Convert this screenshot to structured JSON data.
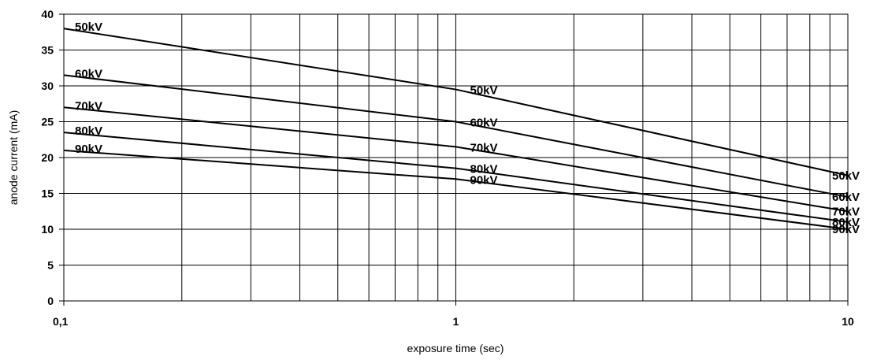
{
  "chart_data": {
    "type": "line",
    "title": "",
    "xlabel": "exposure time   (sec)",
    "ylabel": "anode current   (mA)",
    "x_scale": "log",
    "xlim": [
      0.1,
      10
    ],
    "ylim": [
      0,
      40
    ],
    "x_ticks": [
      0.1,
      1,
      10
    ],
    "x_tick_labels": [
      "0,1",
      "1",
      "10"
    ],
    "y_ticks": [
      0,
      5,
      10,
      15,
      20,
      25,
      30,
      35,
      40
    ],
    "y_tick_labels": [
      "0",
      "5",
      "10",
      "15",
      "20",
      "25",
      "30",
      "35",
      "40"
    ],
    "grid": true,
    "legend": "none",
    "series": [
      {
        "name": "50kV",
        "x": [
          0.1,
          1,
          10
        ],
        "y": [
          38,
          29.5,
          17.5
        ]
      },
      {
        "name": "60kV",
        "x": [
          0.1,
          1,
          10
        ],
        "y": [
          31.5,
          25,
          14.5
        ]
      },
      {
        "name": "70kV",
        "x": [
          0.1,
          1,
          10
        ],
        "y": [
          27,
          21.5,
          12.5
        ]
      },
      {
        "name": "80kV",
        "x": [
          0.1,
          1,
          10
        ],
        "y": [
          23.5,
          18.5,
          11
        ]
      },
      {
        "name": "90kV",
        "x": [
          0.1,
          1,
          10
        ],
        "y": [
          21,
          17,
          10
        ]
      }
    ]
  }
}
